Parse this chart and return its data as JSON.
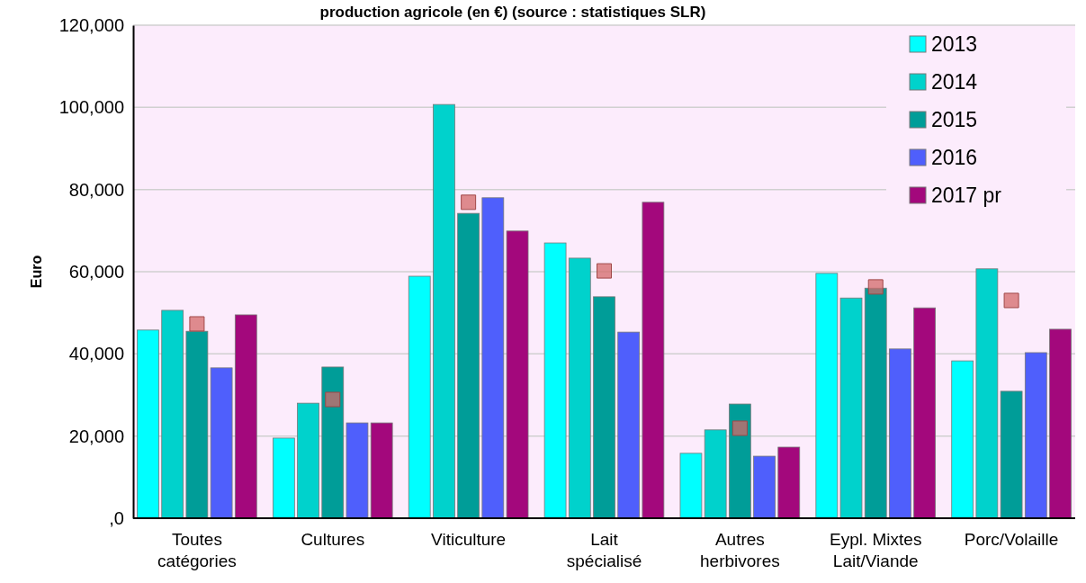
{
  "chart_data": {
    "type": "bar",
    "title": "production agricole (en €) (source : statistiques SLR)",
    "ylabel": "Euro",
    "categories": [
      "Toutes catégories",
      "Cultures",
      "Viticulture",
      "Lait spécialisé",
      "Autres herbivores",
      "Eypl. Mixtes Lait/Viande",
      "Porc/Volaille"
    ],
    "series": [
      {
        "name": "2013",
        "color": "#00ffff",
        "values": [
          45800,
          19500,
          58900,
          67000,
          15800,
          59600,
          38300
        ]
      },
      {
        "name": "2014",
        "color": "#00d2cc",
        "values": [
          50600,
          28000,
          100700,
          63300,
          21500,
          53600,
          60700
        ]
      },
      {
        "name": "2015",
        "color": "#009d98",
        "values": [
          45500,
          36800,
          74200,
          53900,
          27800,
          56000,
          30900
        ]
      },
      {
        "name": "2016",
        "color": "#4f5ffc",
        "values": [
          36600,
          23200,
          78000,
          45300,
          15100,
          41200,
          40300
        ]
      },
      {
        "name": "2017 pr",
        "color": "#a3087c",
        "values": [
          49500,
          23200,
          69900,
          76900,
          17300,
          51200,
          46000
        ]
      },
      {
        "type": "scatter",
        "color": "#d46a6a",
        "x": [
          "Toutes catégories",
          "Cultures",
          "Viticulture",
          "Lait spécialisé",
          "Autres herbivores",
          "Eypl. Mixtes Lait/Viande",
          "Porc/Volaille"
        ],
        "values": [
          47300,
          28900,
          76900,
          60200,
          21900,
          56300,
          53000
        ]
      }
    ],
    "ylim": [
      0,
      120000
    ],
    "yticks": [
      {
        "value": 0,
        "label": ",0"
      },
      {
        "value": 20000,
        "label": "20,000"
      },
      {
        "value": 40000,
        "label": "40,000"
      },
      {
        "value": 60000,
        "label": "60,000"
      },
      {
        "value": 80000,
        "label": "80,000"
      },
      {
        "value": 100000,
        "label": "100,000"
      },
      {
        "value": 120000,
        "label": "120,000"
      }
    ],
    "grid": "y",
    "legend": "top right",
    "marker": "square"
  }
}
